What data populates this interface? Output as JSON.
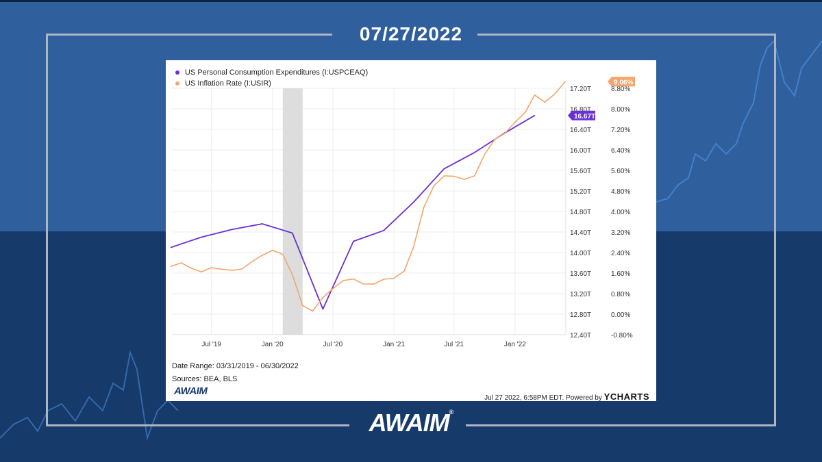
{
  "header": {
    "date": "07/27/2022"
  },
  "brand": {
    "logo_text": "AWAIM",
    "trademark": "®",
    "card_logo_text": "AWAIM"
  },
  "colors": {
    "series1": "#6a2fd6",
    "series2": "#f5a46c",
    "recession_band": "#dddddd",
    "bg_top": "#2f5f9c",
    "bg_bottom": "#163a6a"
  },
  "chart_data": {
    "type": "line",
    "x_ticks": [
      "Jul '19",
      "Jan '20",
      "Jul '20",
      "Jan '21",
      "Jul '21",
      "Jan '22"
    ],
    "left_axis": {
      "ticks": [
        "17.20T",
        "16.80T",
        "16.40T",
        "16.00T",
        "15.60T",
        "15.20T",
        "14.80T",
        "14.40T",
        "14.00T",
        "13.60T",
        "13.20T",
        "12.80T",
        "12.40T"
      ],
      "ylim": [
        12.4,
        17.2
      ]
    },
    "right_axis": {
      "ticks": [
        "8.80%",
        "8.00%",
        "7.20%",
        "6.40%",
        "5.60%",
        "4.80%",
        "4.00%",
        "3.20%",
        "2.40%",
        "1.60%",
        "0.80%",
        "0.00%",
        "-0.80%"
      ],
      "ylim": [
        -0.8,
        8.8
      ]
    },
    "recession_band": [
      "2020-02",
      "2020-04"
    ],
    "series": [
      {
        "name": "US Personal Consumption Expenditures (I:USPCEAQ)",
        "axis": "left",
        "end_label": "16.67T",
        "x": [
          "2019-03",
          "2019-06",
          "2019-09",
          "2019-12",
          "2020-03",
          "2020-06",
          "2020-09",
          "2020-12",
          "2021-03",
          "2021-06",
          "2021-09",
          "2021-12",
          "2022-03"
        ],
        "values": [
          14.1,
          14.3,
          14.45,
          14.56,
          14.38,
          12.9,
          14.22,
          14.43,
          14.98,
          15.63,
          15.95,
          16.33,
          16.67
        ]
      },
      {
        "name": "US Inflation Rate (I:USIR)",
        "axis": "right",
        "end_label": "9.06%",
        "x": [
          "2019-03",
          "2019-04",
          "2019-05",
          "2019-06",
          "2019-07",
          "2019-08",
          "2019-09",
          "2019-10",
          "2019-11",
          "2019-12",
          "2020-01",
          "2020-02",
          "2020-03",
          "2020-04",
          "2020-05",
          "2020-06",
          "2020-07",
          "2020-08",
          "2020-09",
          "2020-10",
          "2020-11",
          "2020-12",
          "2021-01",
          "2021-02",
          "2021-03",
          "2021-04",
          "2021-05",
          "2021-06",
          "2021-07",
          "2021-08",
          "2021-09",
          "2021-10",
          "2021-11",
          "2021-12",
          "2022-01",
          "2022-02",
          "2022-03",
          "2022-04",
          "2022-05",
          "2022-06"
        ],
        "values": [
          1.86,
          2.0,
          1.79,
          1.65,
          1.81,
          1.75,
          1.71,
          1.76,
          2.05,
          2.29,
          2.49,
          2.33,
          1.54,
          0.33,
          0.12,
          0.65,
          0.99,
          1.31,
          1.37,
          1.18,
          1.17,
          1.36,
          1.4,
          1.68,
          2.62,
          4.16,
          4.99,
          5.39,
          5.37,
          5.25,
          5.39,
          6.22,
          6.81,
          7.04,
          7.48,
          7.87,
          8.54,
          8.26,
          8.58,
          9.06
        ]
      }
    ]
  },
  "footer": {
    "date_range": "Date Range: 03/31/2019 - 06/30/2022",
    "sources": "Sources: BEA, BLS",
    "timestamp": "Jul 27 2022, 6:58PM EDT. Powered by",
    "provider": "YCHARTS"
  }
}
